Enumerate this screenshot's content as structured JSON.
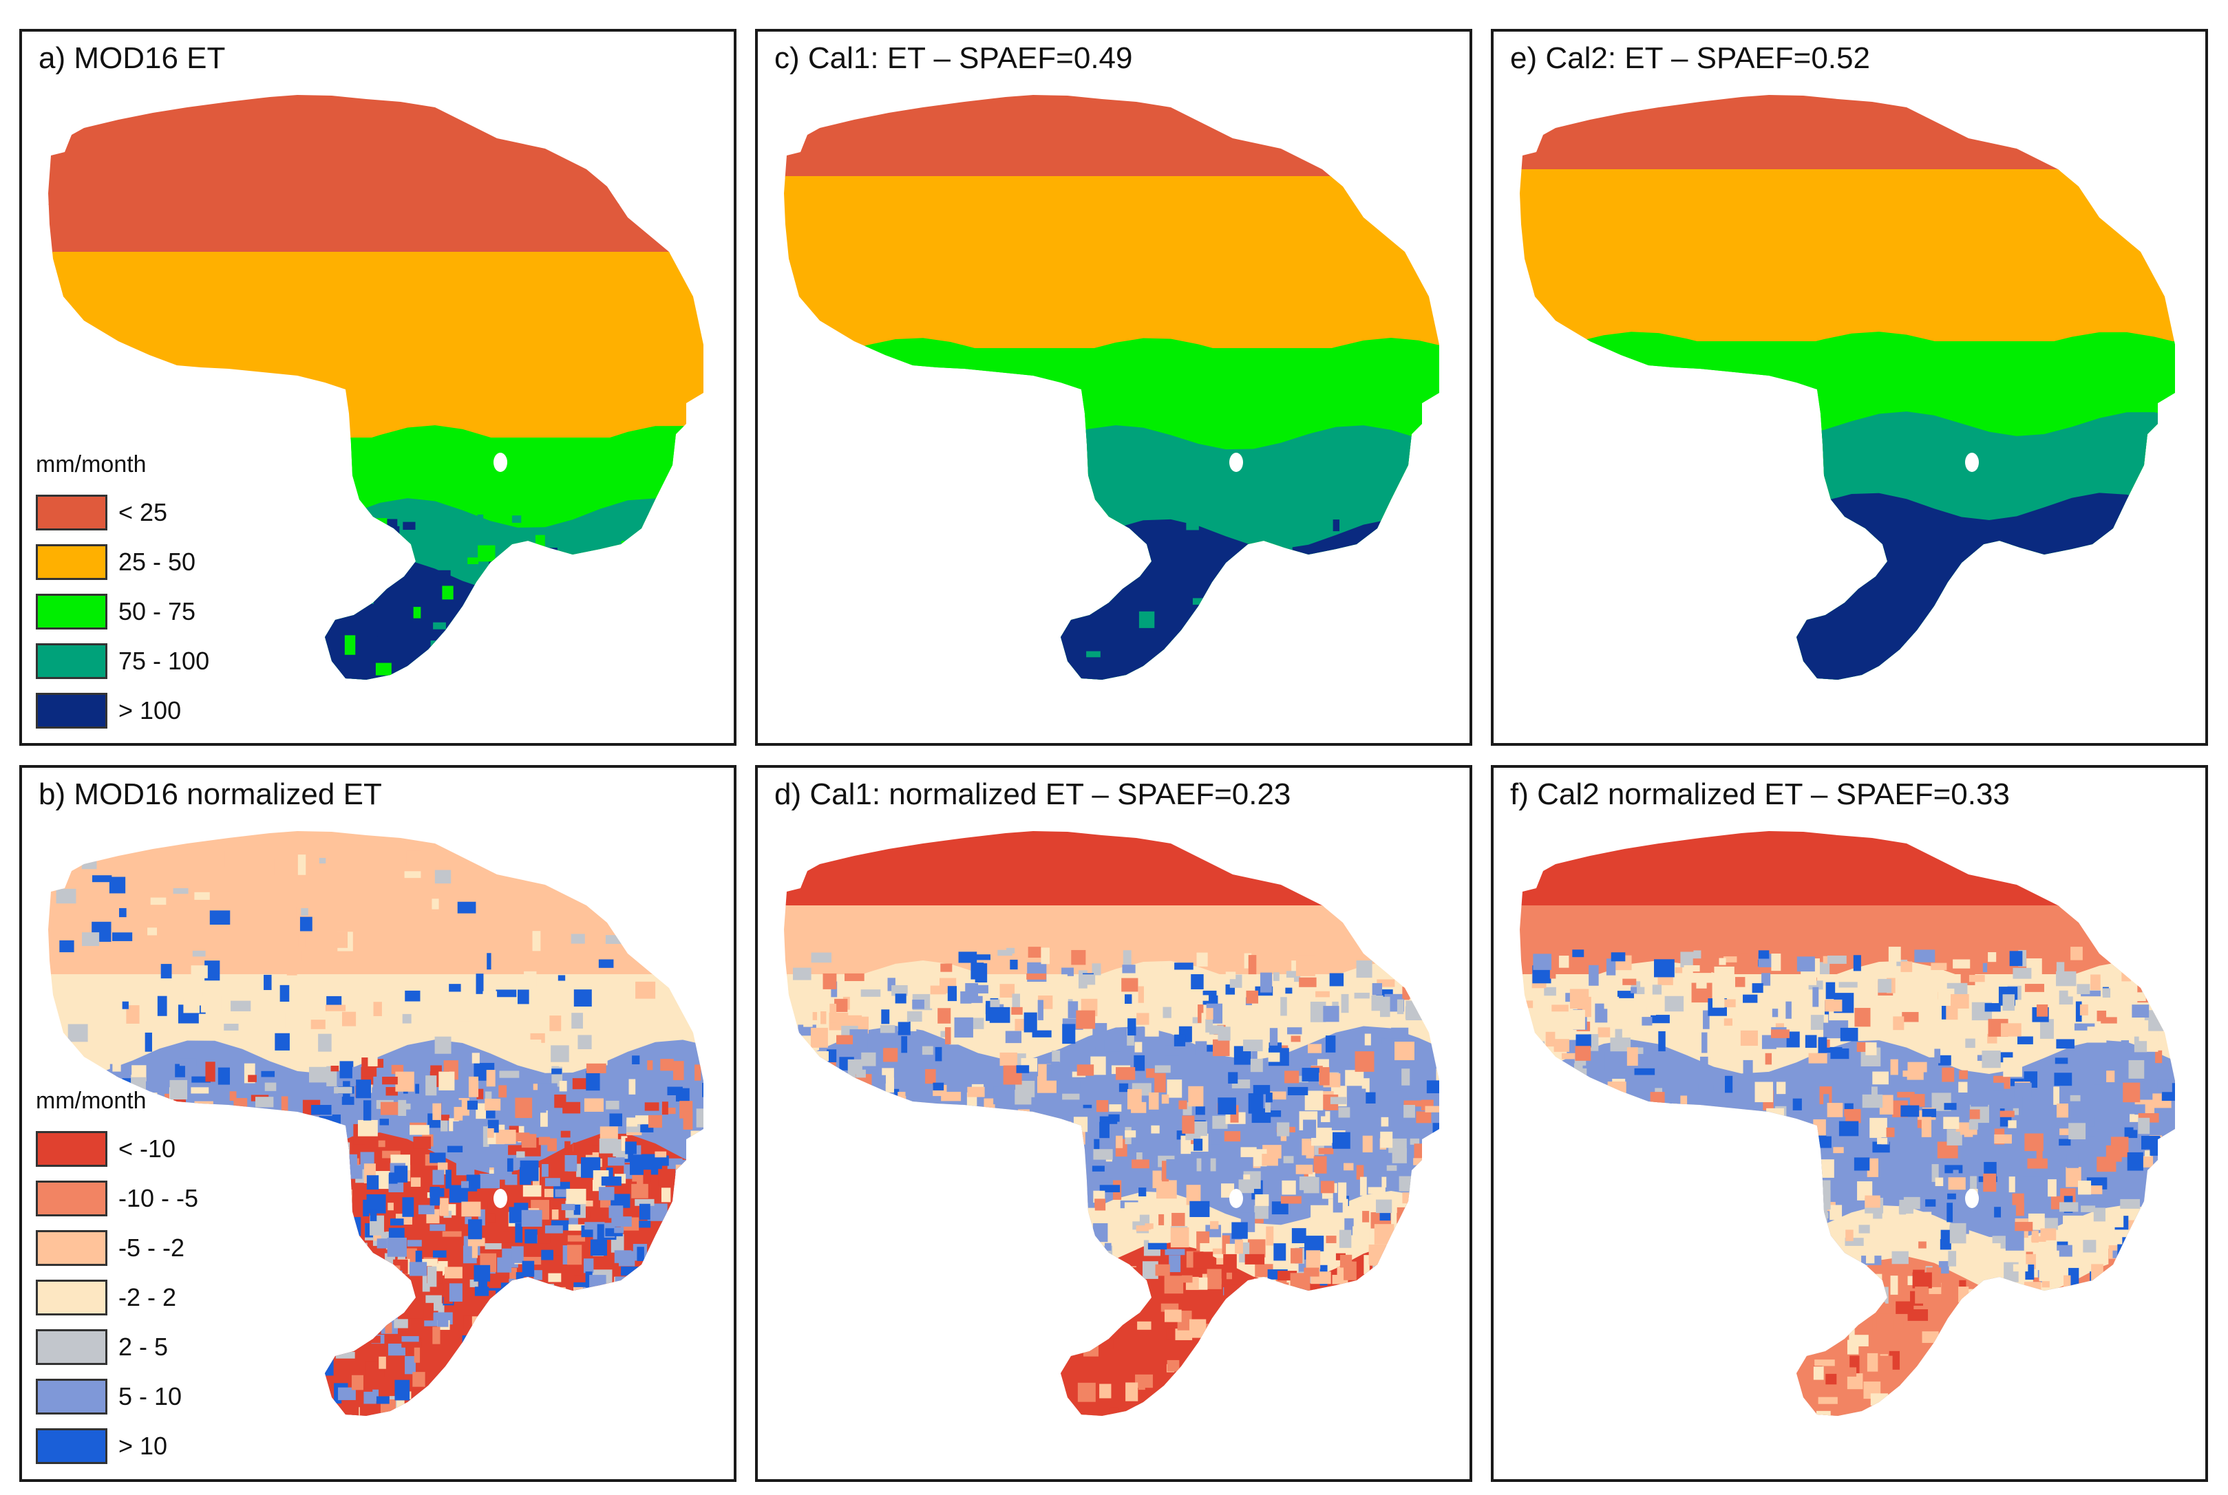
{
  "colors": {
    "et": [
      "#e05a3c",
      "#ffb000",
      "#00ee00",
      "#00a27a",
      "#0a2a80"
    ],
    "norm": [
      "#e0412f",
      "#f28463",
      "#ffc39a",
      "#fde7c2",
      "#c2c6cc",
      "#7f98d8",
      "#1a5fd8"
    ],
    "white": "#ffffff"
  },
  "legends": {
    "et": {
      "unit": "mm/month",
      "items": [
        "< 25",
        "25 - 50",
        "50 - 75",
        "75 - 100",
        "> 100"
      ]
    },
    "norm": {
      "unit": "mm/month",
      "items": [
        "< -10",
        "-10 - -5",
        "-5 - -2",
        "-2 - 2",
        "2 - 5",
        "5 - 10",
        "> 10"
      ]
    }
  },
  "panels": [
    {
      "id": "a",
      "title": "a)  MOD16 ET",
      "kind": "et",
      "scheme": "mod16"
    },
    {
      "id": "c",
      "title": "c) Cal1: ET – SPAEF=0.49",
      "kind": "et",
      "scheme": "cal1"
    },
    {
      "id": "e",
      "title": "e) Cal2: ET – SPAEF=0.52",
      "kind": "et",
      "scheme": "cal2"
    },
    {
      "id": "b",
      "title": "b) MOD16 normalized ET",
      "kind": "norm",
      "scheme": "mod16"
    },
    {
      "id": "d",
      "title": "d) Cal1: normalized ET – SPAEF=0.23",
      "kind": "norm",
      "scheme": "cal1"
    },
    {
      "id": "f",
      "title": "f) Cal2 normalized ET – SPAEF=0.33",
      "kind": "norm",
      "scheme": "cal2"
    }
  ]
}
